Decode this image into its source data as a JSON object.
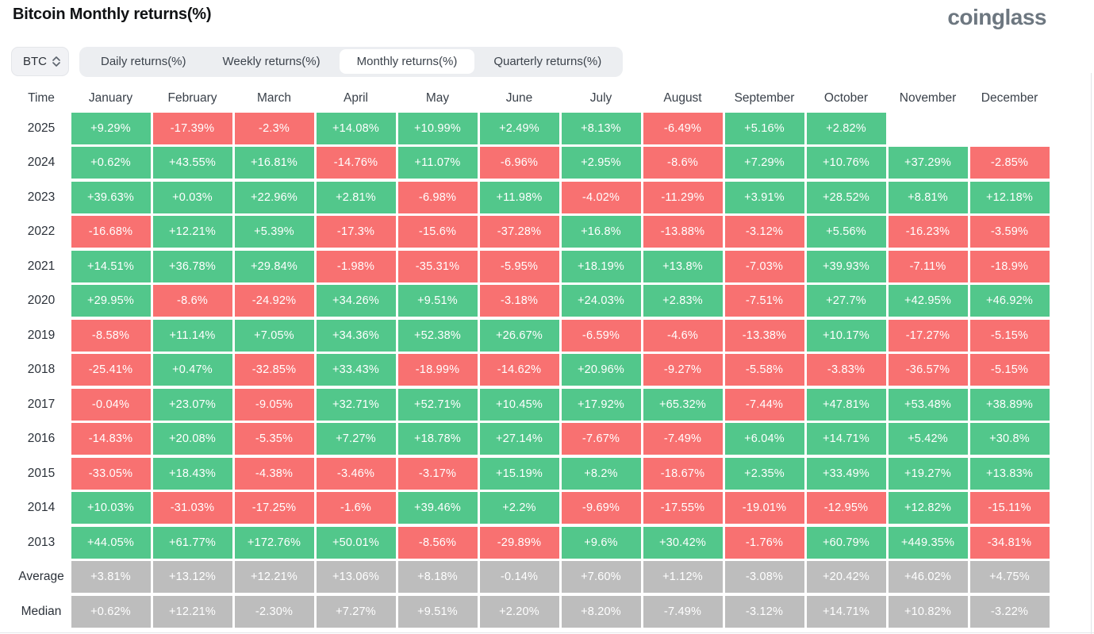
{
  "header": {
    "title": "Bitcoin Monthly returns(%)",
    "logo": "coinglass"
  },
  "controls": {
    "symbol": "BTC",
    "symbol_select_icon": "updown-chevron-icon",
    "tabs": [
      {
        "label": "Daily returns(%)",
        "active": false
      },
      {
        "label": "Weekly returns(%)",
        "active": false
      },
      {
        "label": "Monthly returns(%)",
        "active": true
      },
      {
        "label": "Quarterly returns(%)",
        "active": false
      }
    ]
  },
  "chart_data": {
    "type": "heatmap",
    "title": "Bitcoin Monthly returns(%)",
    "columns": [
      "Time",
      "January",
      "February",
      "March",
      "April",
      "May",
      "June",
      "July",
      "August",
      "September",
      "October",
      "November",
      "December"
    ],
    "rows": [
      {
        "label": "2025",
        "kind": "year",
        "values": [
          "+9.29%",
          "-17.39%",
          "-2.3%",
          "+14.08%",
          "+10.99%",
          "+2.49%",
          "+8.13%",
          "-6.49%",
          "+5.16%",
          "+2.82%",
          "",
          ""
        ]
      },
      {
        "label": "2024",
        "kind": "year",
        "values": [
          "+0.62%",
          "+43.55%",
          "+16.81%",
          "-14.76%",
          "+11.07%",
          "-6.96%",
          "+2.95%",
          "-8.6%",
          "+7.29%",
          "+10.76%",
          "+37.29%",
          "-2.85%"
        ]
      },
      {
        "label": "2023",
        "kind": "year",
        "values": [
          "+39.63%",
          "+0.03%",
          "+22.96%",
          "+2.81%",
          "-6.98%",
          "+11.98%",
          "-4.02%",
          "-11.29%",
          "+3.91%",
          "+28.52%",
          "+8.81%",
          "+12.18%"
        ]
      },
      {
        "label": "2022",
        "kind": "year",
        "values": [
          "-16.68%",
          "+12.21%",
          "+5.39%",
          "-17.3%",
          "-15.6%",
          "-37.28%",
          "+16.8%",
          "-13.88%",
          "-3.12%",
          "+5.56%",
          "-16.23%",
          "-3.59%"
        ]
      },
      {
        "label": "2021",
        "kind": "year",
        "values": [
          "+14.51%",
          "+36.78%",
          "+29.84%",
          "-1.98%",
          "-35.31%",
          "-5.95%",
          "+18.19%",
          "+13.8%",
          "-7.03%",
          "+39.93%",
          "-7.11%",
          "-18.9%"
        ]
      },
      {
        "label": "2020",
        "kind": "year",
        "values": [
          "+29.95%",
          "-8.6%",
          "-24.92%",
          "+34.26%",
          "+9.51%",
          "-3.18%",
          "+24.03%",
          "+2.83%",
          "-7.51%",
          "+27.7%",
          "+42.95%",
          "+46.92%"
        ]
      },
      {
        "label": "2019",
        "kind": "year",
        "values": [
          "-8.58%",
          "+11.14%",
          "+7.05%",
          "+34.36%",
          "+52.38%",
          "+26.67%",
          "-6.59%",
          "-4.6%",
          "-13.38%",
          "+10.17%",
          "-17.27%",
          "-5.15%"
        ]
      },
      {
        "label": "2018",
        "kind": "year",
        "values": [
          "-25.41%",
          "+0.47%",
          "-32.85%",
          "+33.43%",
          "-18.99%",
          "-14.62%",
          "+20.96%",
          "-9.27%",
          "-5.58%",
          "-3.83%",
          "-36.57%",
          "-5.15%"
        ]
      },
      {
        "label": "2017",
        "kind": "year",
        "values": [
          "-0.04%",
          "+23.07%",
          "-9.05%",
          "+32.71%",
          "+52.71%",
          "+10.45%",
          "+17.92%",
          "+65.32%",
          "-7.44%",
          "+47.81%",
          "+53.48%",
          "+38.89%"
        ]
      },
      {
        "label": "2016",
        "kind": "year",
        "values": [
          "-14.83%",
          "+20.08%",
          "-5.35%",
          "+7.27%",
          "+18.78%",
          "+27.14%",
          "-7.67%",
          "-7.49%",
          "+6.04%",
          "+14.71%",
          "+5.42%",
          "+30.8%"
        ]
      },
      {
        "label": "2015",
        "kind": "year",
        "values": [
          "-33.05%",
          "+18.43%",
          "-4.38%",
          "-3.46%",
          "-3.17%",
          "+15.19%",
          "+8.2%",
          "-18.67%",
          "+2.35%",
          "+33.49%",
          "+19.27%",
          "+13.83%"
        ]
      },
      {
        "label": "2014",
        "kind": "year",
        "values": [
          "+10.03%",
          "-31.03%",
          "-17.25%",
          "-1.6%",
          "+39.46%",
          "+2.2%",
          "-9.69%",
          "-17.55%",
          "-19.01%",
          "-12.95%",
          "+12.82%",
          "-15.11%"
        ]
      },
      {
        "label": "2013",
        "kind": "year",
        "values": [
          "+44.05%",
          "+61.77%",
          "+172.76%",
          "+50.01%",
          "-8.56%",
          "-29.89%",
          "+9.6%",
          "+30.42%",
          "-1.76%",
          "+60.79%",
          "+449.35%",
          "-34.81%"
        ]
      },
      {
        "label": "Average",
        "kind": "stat",
        "values": [
          "+3.81%",
          "+13.12%",
          "+12.21%",
          "+13.06%",
          "+8.18%",
          "-0.14%",
          "+7.60%",
          "+1.12%",
          "-3.08%",
          "+20.42%",
          "+46.02%",
          "+4.75%"
        ]
      },
      {
        "label": "Median",
        "kind": "stat",
        "values": [
          "+0.62%",
          "+12.21%",
          "-2.30%",
          "+7.27%",
          "+9.51%",
          "+2.20%",
          "+8.20%",
          "-7.49%",
          "-3.12%",
          "+14.71%",
          "+10.82%",
          "-3.22%"
        ]
      }
    ],
    "colors": {
      "positive": "#52c78b",
      "negative": "#f87171",
      "neutral": "#bdbdbd",
      "empty": "#ffffff"
    },
    "layout": {
      "grid": false,
      "legend": "none",
      "value_text_color": "#ffffff"
    }
  }
}
